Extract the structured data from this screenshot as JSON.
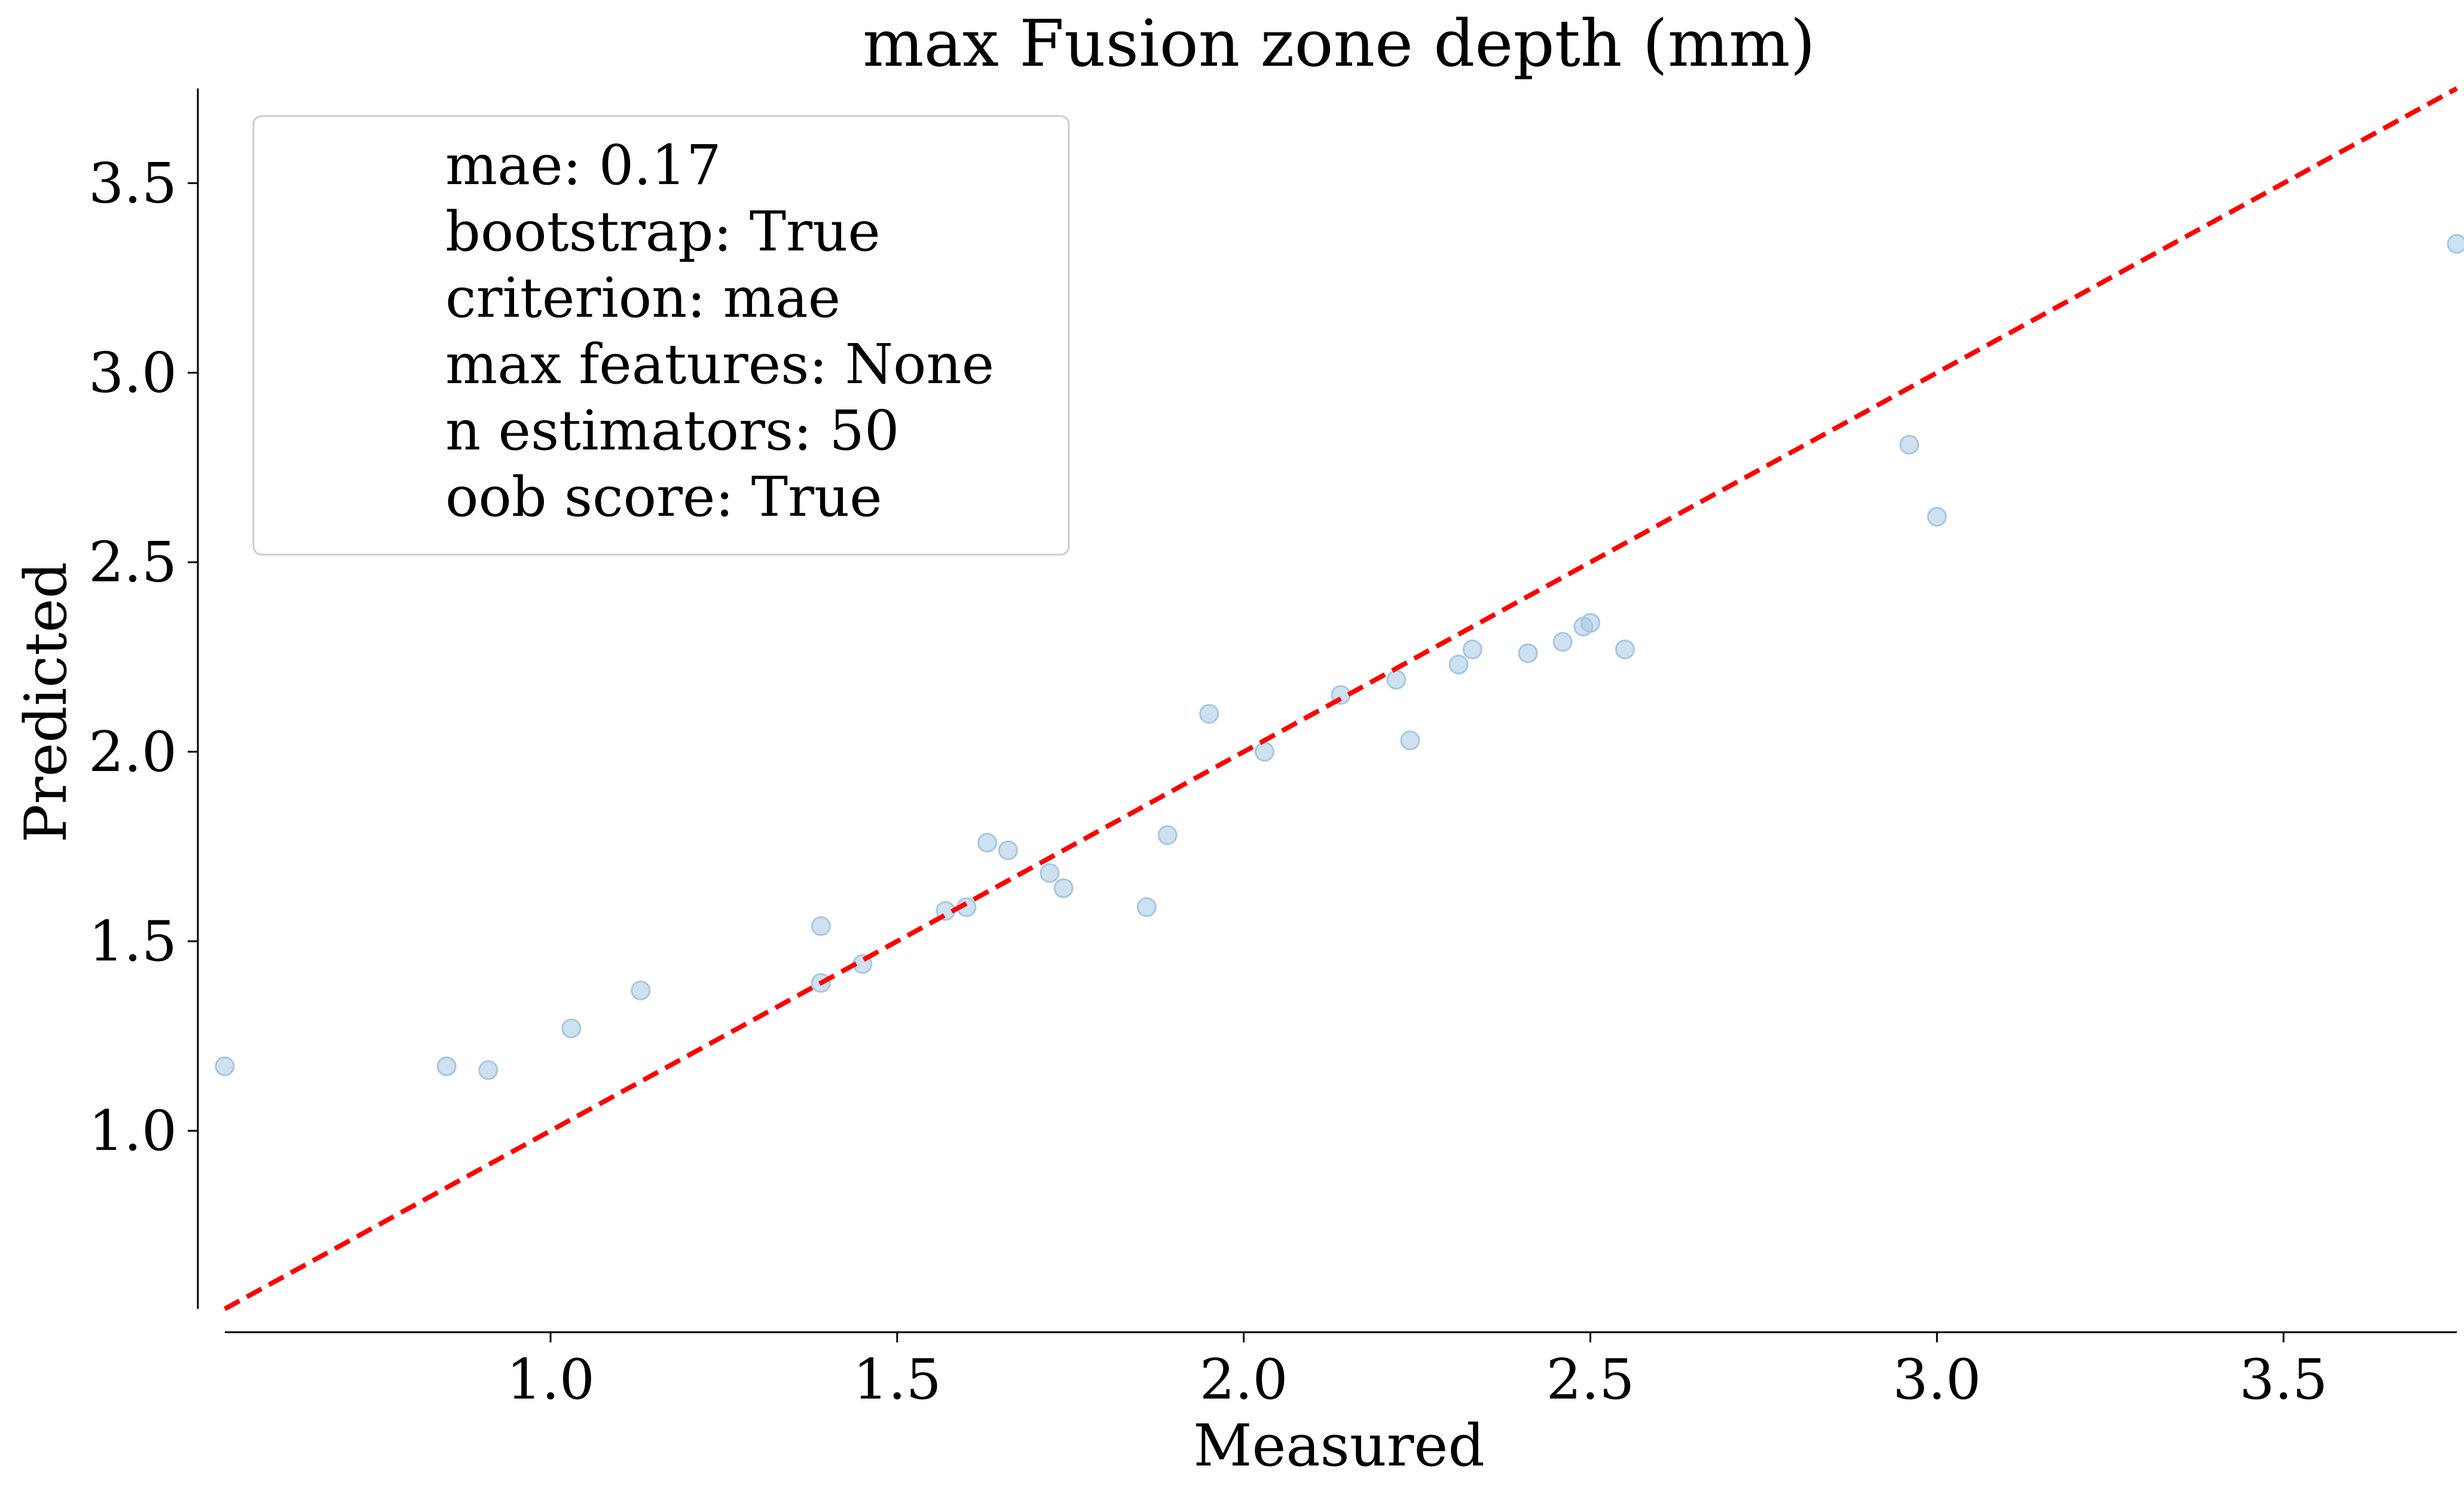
{
  "chart_data": {
    "type": "scatter",
    "title": "max Fusion zone depth (mm)",
    "xlabel": "Measured",
    "ylabel": "Predicted",
    "xlim": [
      0.53,
      3.75
    ],
    "ylim": [
      0.53,
      3.75
    ],
    "x_ticks": [
      "1.0",
      "1.5",
      "2.0",
      "2.5",
      "3.0",
      "3.5"
    ],
    "y_ticks": [
      "1.0",
      "1.5",
      "2.0",
      "2.5",
      "3.0",
      "3.5"
    ],
    "grid": false,
    "legend_position": "top-left",
    "legend_lines": [
      "mae: 0.17",
      "bootstrap: True",
      "criterion: mae",
      "max features: None",
      "n estimators: 50",
      "oob score: True"
    ],
    "reference_line": {
      "style": "dashed",
      "color": "#ff0000",
      "x": [
        0.53,
        3.75
      ],
      "y": [
        0.53,
        3.75
      ]
    },
    "marker_color": "#a6c8e4",
    "points": [
      [
        0.53,
        1.17
      ],
      [
        0.85,
        1.17
      ],
      [
        0.91,
        1.16
      ],
      [
        1.03,
        1.27
      ],
      [
        1.13,
        1.37
      ],
      [
        1.39,
        1.54
      ],
      [
        1.39,
        1.39
      ],
      [
        1.45,
        1.44
      ],
      [
        1.57,
        1.58
      ],
      [
        1.6,
        1.59
      ],
      [
        1.63,
        1.76
      ],
      [
        1.66,
        1.74
      ],
      [
        1.72,
        1.68
      ],
      [
        1.74,
        1.64
      ],
      [
        1.86,
        1.59
      ],
      [
        1.89,
        1.78
      ],
      [
        1.95,
        2.1
      ],
      [
        2.03,
        2.0
      ],
      [
        2.14,
        2.15
      ],
      [
        2.22,
        2.19
      ],
      [
        2.24,
        2.03
      ],
      [
        2.31,
        2.23
      ],
      [
        2.33,
        2.27
      ],
      [
        2.41,
        2.26
      ],
      [
        2.46,
        2.29
      ],
      [
        2.49,
        2.33
      ],
      [
        2.5,
        2.34
      ],
      [
        2.55,
        2.27
      ],
      [
        2.96,
        2.81
      ],
      [
        3.0,
        2.62
      ],
      [
        3.75,
        3.34
      ]
    ]
  }
}
